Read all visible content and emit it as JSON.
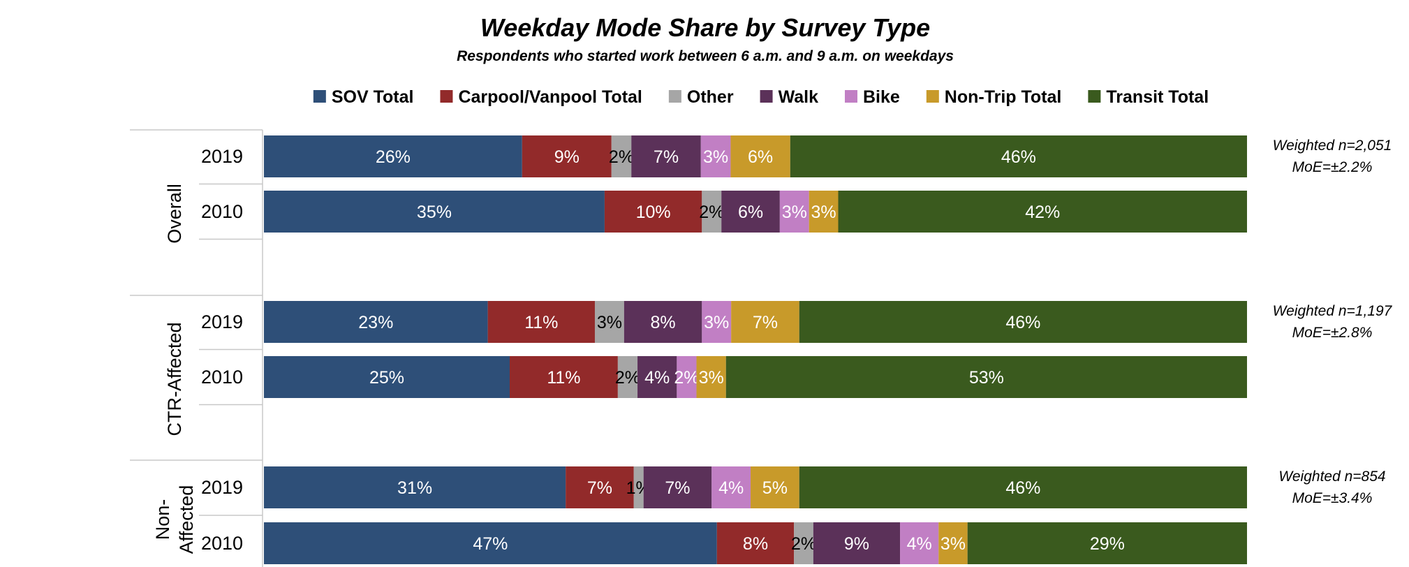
{
  "chart_data": {
    "type": "bar",
    "orientation": "horizontal",
    "stacked": true,
    "normalized": true,
    "title": "Weekday Mode Share by Survey Type",
    "subtitle": "Respondents who started work between 6 a.m. and 9 a.m. on weekdays",
    "legend_position": "top",
    "series": [
      {
        "name": "SOV Total",
        "color": "#2e4f78"
      },
      {
        "name": "Carpool/Vanpool Total",
        "color": "#922a2a"
      },
      {
        "name": "Other",
        "color": "#a6a6a6"
      },
      {
        "name": "Walk",
        "color": "#5b3159"
      },
      {
        "name": "Bike",
        "color": "#c17fc4"
      },
      {
        "name": "Non-Trip Total",
        "color": "#c89a2a"
      },
      {
        "name": "Transit Total",
        "color": "#3a5a1e"
      }
    ],
    "groups": [
      {
        "name": "Overall",
        "note": [
          "Weighted n=2,051",
          "MoE=±2.2%"
        ],
        "rows": [
          {
            "year": "2019",
            "values": [
              26,
              9,
              2,
              7,
              3,
              6,
              46
            ],
            "labels": [
              "26%",
              "9%",
              "2%",
              "7%",
              "3%",
              "6%",
              "46%"
            ]
          },
          {
            "year": "2010",
            "values": [
              35,
              10,
              2,
              6,
              3,
              3,
              42
            ],
            "labels": [
              "35%",
              "10%",
              "2%",
              "6%",
              "3%",
              "3%",
              "42%"
            ]
          }
        ]
      },
      {
        "name": "CTR-Affected",
        "note": [
          "Weighted n=1,197",
          "MoE=±2.8%"
        ],
        "rows": [
          {
            "year": "2019",
            "values": [
              23,
              11,
              3,
              8,
              3,
              7,
              46
            ],
            "labels": [
              "23%",
              "11%",
              "3%",
              "8%",
              "3%",
              "7%",
              "46%"
            ]
          },
          {
            "year": "2010",
            "values": [
              25,
              11,
              2,
              4,
              2,
              3,
              53
            ],
            "labels": [
              "25%",
              "11%",
              "2%",
              "4%",
              "2%",
              "3%",
              "53%"
            ]
          }
        ]
      },
      {
        "name": "Non-Affected",
        "name_lines": [
          "Non-",
          "Affected"
        ],
        "note": [
          "Weighted n=854",
          "MoE=±3.4%"
        ],
        "rows": [
          {
            "year": "2019",
            "values": [
              31,
              7,
              1,
              7,
              4,
              5,
              46
            ],
            "labels": [
              "31%",
              "7%",
              "1%",
              "7%",
              "4%",
              "5%",
              "46%"
            ]
          },
          {
            "year": "2010",
            "values": [
              47,
              8,
              2,
              9,
              4,
              3,
              29
            ],
            "labels": [
              "47%",
              "8%",
              "2%",
              "9%",
              "4%",
              "3%",
              "29%"
            ]
          }
        ]
      }
    ]
  }
}
